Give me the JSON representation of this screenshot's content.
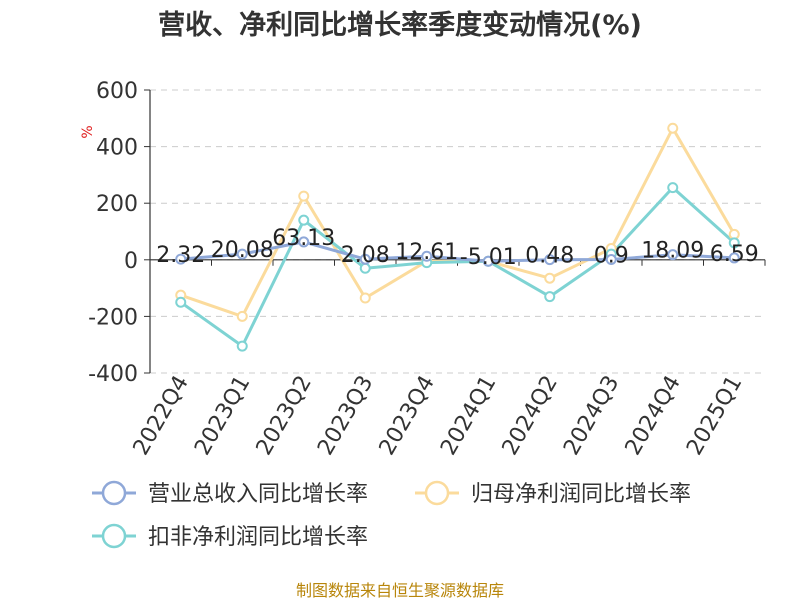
{
  "chart_data": {
    "type": "line",
    "title": "营收、净利同比增长率季度变动情况(%)",
    "ylabel": "%",
    "categories": [
      "2022Q4",
      "2023Q1",
      "2023Q2",
      "2023Q3",
      "2023Q4",
      "2024Q1",
      "2024Q2",
      "2024Q3",
      "2024Q4",
      "2025Q1"
    ],
    "ylim": [
      -400,
      600
    ],
    "yticks": [
      "600",
      "400",
      "200",
      "0",
      "-200",
      "-400"
    ],
    "grid": true,
    "legend_position": "bottom",
    "series": [
      {
        "name": "营业总收入同比增长率",
        "color": "#8fa8d8",
        "values": [
          2.32,
          20.08,
          63.13,
          2.08,
          12.61,
          -5.01,
          0.48,
          0.9,
          18.09,
          6.59
        ],
        "labels": [
          "2.32",
          "20.08",
          "63.13",
          "2.08",
          "12.61",
          "-5.01",
          "0.48",
          "0.9",
          "18.09",
          "6.59"
        ]
      },
      {
        "name": "归母净利润同比增长率",
        "color": "#fbdb9c",
        "values": [
          -125,
          -200,
          225,
          -135,
          -5,
          -5,
          -65,
          40,
          465,
          90
        ]
      },
      {
        "name": "扣非净利润同比增长率",
        "color": "#7ed3d3",
        "values": [
          -150,
          -305,
          140,
          -30,
          -10,
          -5,
          -130,
          20,
          255,
          60
        ]
      }
    ]
  },
  "footer": {
    "source": "制图数据来自恒生聚源数据库"
  }
}
